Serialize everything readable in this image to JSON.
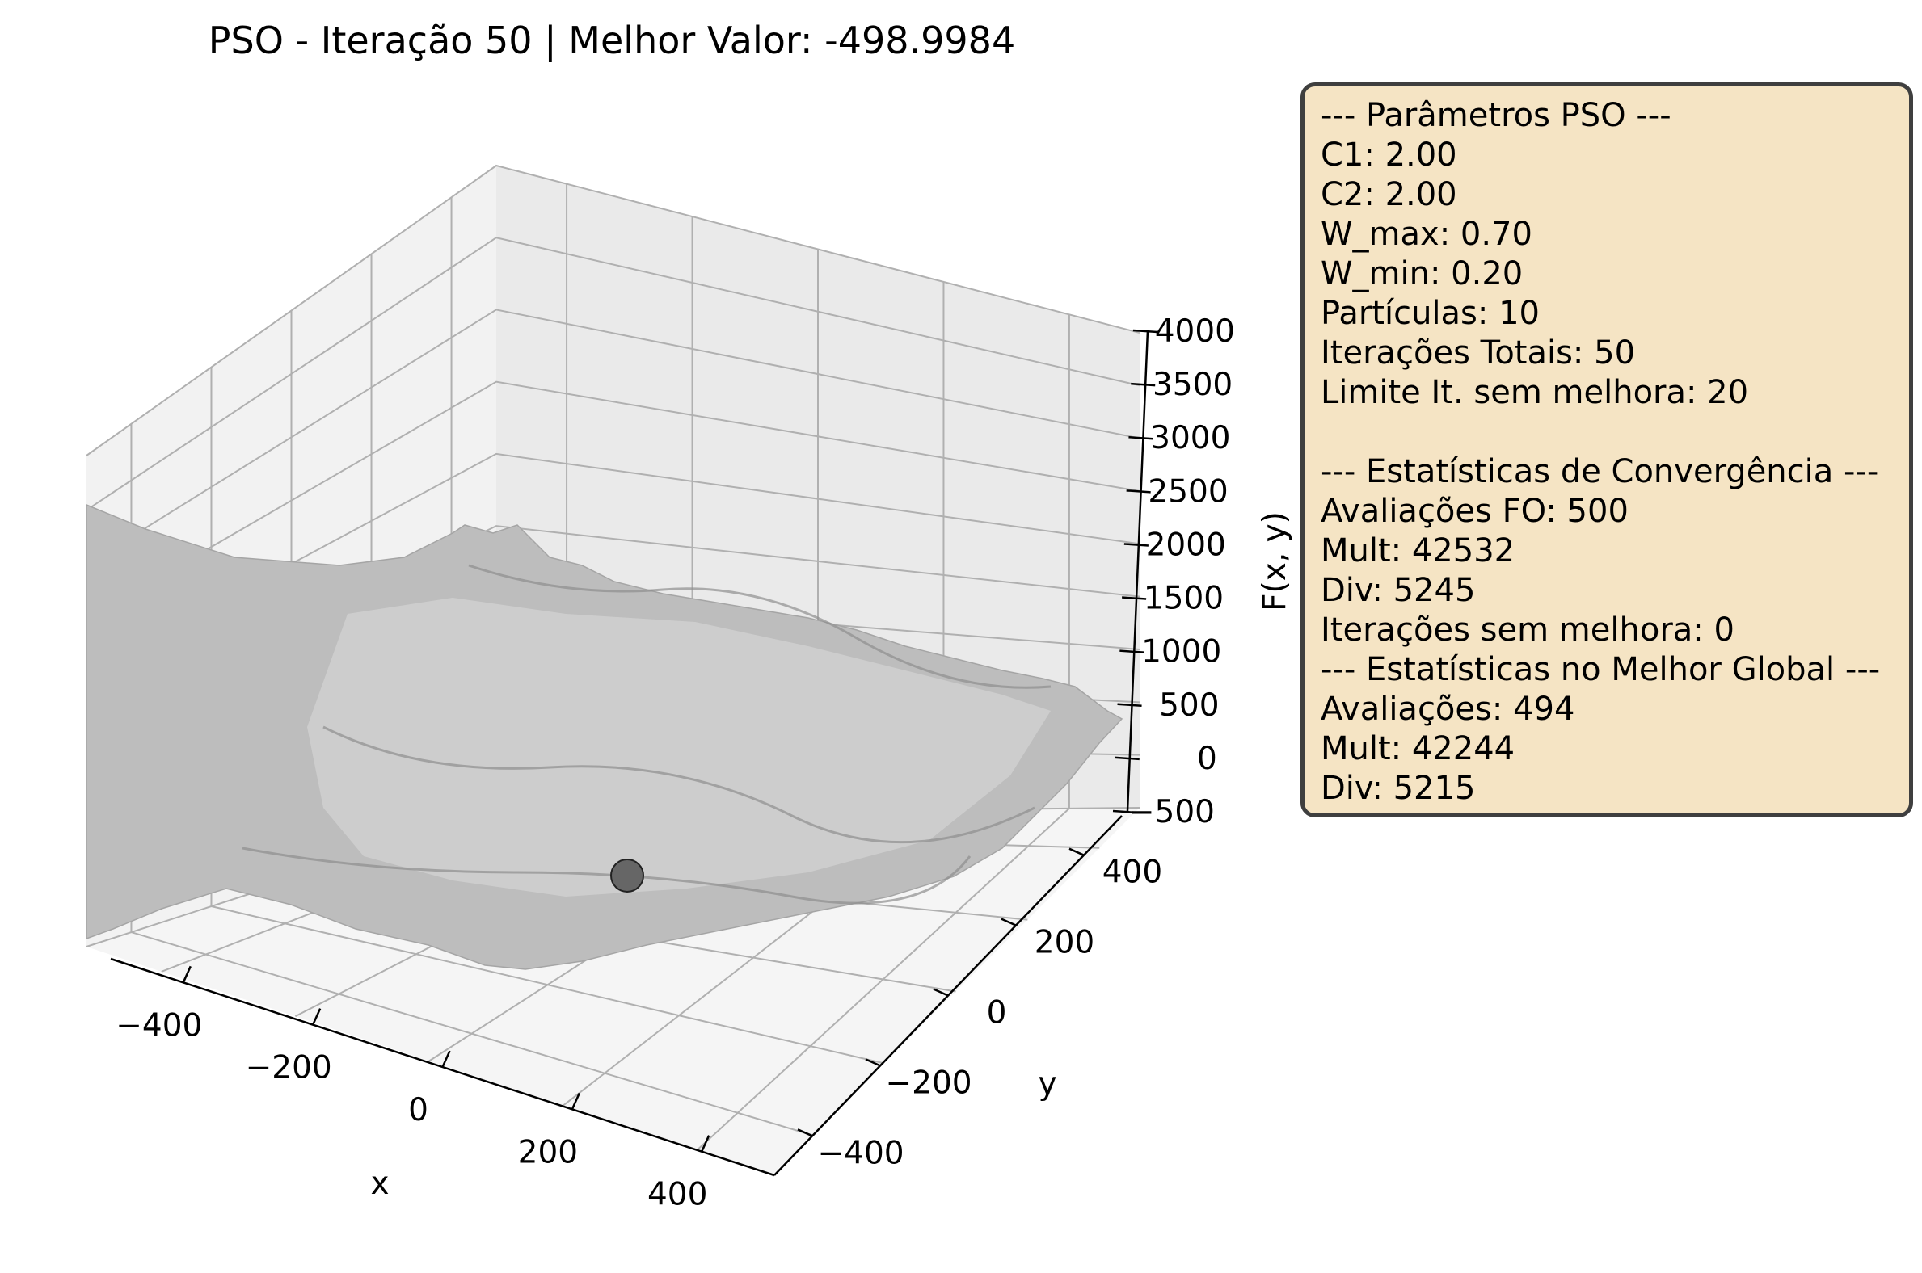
{
  "title": "PSO - Iteração 50 | Melhor Valor: -498.9984",
  "chart_data": {
    "type": "surface3d",
    "title": "PSO - Iteração 50 | Melhor Valor: -498.9984",
    "xlabel": "x",
    "ylabel": "y",
    "zlabel": "F(x, y)",
    "x_ticks": [
      "−400",
      "−200",
      "0",
      "200",
      "400"
    ],
    "y_ticks": [
      "−400",
      "−200",
      "0",
      "200",
      "400"
    ],
    "z_ticks": [
      "−500",
      "0",
      "500",
      "1000",
      "1500",
      "2000",
      "2500",
      "3000",
      "3500",
      "4000"
    ],
    "xlim": [
      -512,
      512
    ],
    "ylim": [
      -512,
      512
    ],
    "zlim": [
      -500,
      4000
    ],
    "grid": true,
    "surface_color": "#b8b8b8",
    "best_point": {
      "x": 0,
      "y": 0,
      "z": -498.9984,
      "color": "#666666"
    }
  },
  "info_box": {
    "lines": [
      "--- Parâmetros PSO ---",
      "C1: 2.00",
      "C2: 2.00",
      "W_max: 0.70",
      "W_min: 0.20",
      "Partículas: 10",
      "Iterações Totais: 50",
      "Limite It. sem melhora: 20",
      "",
      "--- Estatísticas de Convergência ---",
      "Avaliações FO: 500",
      "Mult: 42532",
      "Div: 5245",
      "Iterações sem melhora: 0",
      "--- Estatísticas no Melhor Global ---",
      "Avaliações: 494",
      "Mult: 42244",
      "Div: 5215"
    ],
    "background": "#f5e4c4",
    "border": "#3f3f3f"
  }
}
